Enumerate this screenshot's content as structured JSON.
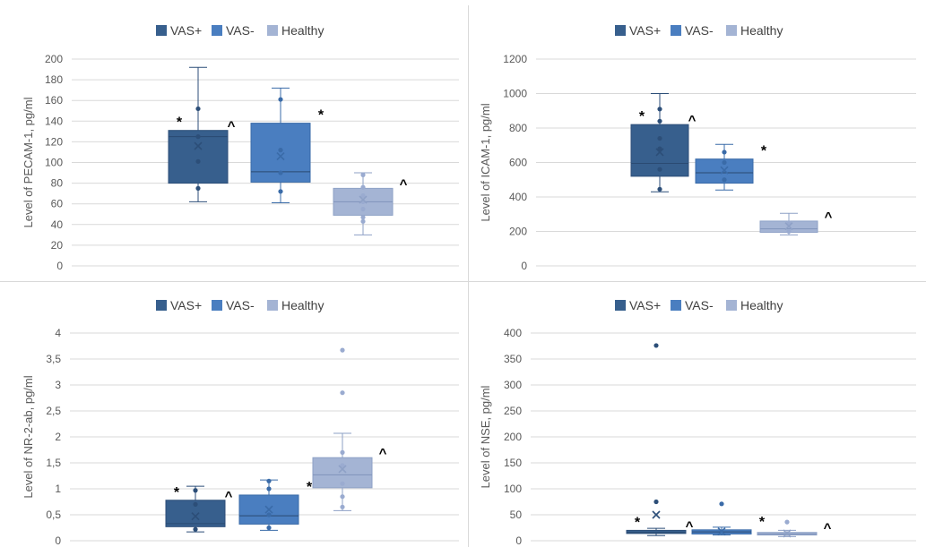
{
  "chart_data": [
    {
      "type": "box",
      "ylabel": "Level of PECAM-1, pg/ml",
      "ylim": [
        0,
        200
      ],
      "yticks": [
        "0",
        "20",
        "40",
        "60",
        "80",
        "100",
        "120",
        "140",
        "160",
        "180",
        "200"
      ],
      "legend": [
        "VAS+",
        "VAS-",
        "Healthy"
      ],
      "legend_position": "top-center",
      "grid": true,
      "series": [
        {
          "name": "VAS+",
          "color": "#375f8d",
          "min": 62,
          "q1": 80,
          "median": 125,
          "q3": 131,
          "max": 192,
          "mean": 116,
          "points": [
            75,
            101,
            125,
            152
          ],
          "annotation": "* ^"
        },
        {
          "name": "VAS-",
          "color": "#4a7ec0",
          "min": 61,
          "q1": 81,
          "median": 91,
          "q3": 138,
          "max": 172,
          "mean": 106,
          "points": [
            72,
            90,
            112,
            161
          ],
          "annotation": "*"
        },
        {
          "name": "Healthy",
          "color": "#a4b4d4",
          "min": 30,
          "q1": 49,
          "median": 62,
          "q3": 75,
          "max": 90,
          "mean": 64,
          "points": [
            43,
            47,
            55,
            62,
            68,
            76,
            88
          ],
          "annotation": "^"
        }
      ]
    },
    {
      "type": "box",
      "ylabel": "Level of ICAM-1, pg/ml",
      "ylim": [
        0,
        1200
      ],
      "yticks": [
        "0",
        "200",
        "400",
        "600",
        "800",
        "1000",
        "1200"
      ],
      "legend": [
        "VAS+",
        "VAS-",
        "Healthy"
      ],
      "legend_position": "top-center",
      "grid": true,
      "series": [
        {
          "name": "VAS+",
          "color": "#375f8d",
          "min": 430,
          "q1": 520,
          "median": 595,
          "q3": 820,
          "max": 1000,
          "mean": 660,
          "points": [
            445,
            560,
            680,
            740,
            840,
            910
          ],
          "annotation": "* ^"
        },
        {
          "name": "VAS-",
          "color": "#4a7ec0",
          "min": 440,
          "q1": 480,
          "median": 540,
          "q3": 620,
          "max": 705,
          "mean": 555,
          "points": [
            500,
            600,
            660
          ],
          "annotation": "*"
        },
        {
          "name": "Healthy",
          "color": "#a4b4d4",
          "min": 180,
          "q1": 195,
          "median": 215,
          "q3": 260,
          "max": 305,
          "mean": 230,
          "points": [
            200,
            250
          ],
          "annotation": "^"
        }
      ]
    },
    {
      "type": "box",
      "ylabel": "Level of NR-2-ab, pg/ml",
      "ylim": [
        0,
        4
      ],
      "yticks": [
        "0",
        "0,5",
        "1",
        "1,5",
        "2",
        "2,5",
        "3",
        "3,5",
        "4"
      ],
      "legend": [
        "VAS+",
        "VAS-",
        "Healthy"
      ],
      "legend_position": "top-center",
      "grid": true,
      "series": [
        {
          "name": "VAS+",
          "color": "#375f8d",
          "min": 0.17,
          "q1": 0.27,
          "median": 0.33,
          "q3": 0.78,
          "max": 1.05,
          "mean": 0.47,
          "points": [
            0.22,
            0.7,
            0.97
          ],
          "annotation": "* ^"
        },
        {
          "name": "VAS-",
          "color": "#4a7ec0",
          "min": 0.2,
          "q1": 0.32,
          "median": 0.48,
          "q3": 0.88,
          "max": 1.17,
          "mean": 0.6,
          "points": [
            0.25,
            0.5,
            1.0,
            1.15
          ],
          "annotation": "*"
        },
        {
          "name": "Healthy",
          "color": "#a4b4d4",
          "min": 0.58,
          "q1": 1.02,
          "median": 1.27,
          "q3": 1.6,
          "max": 2.07,
          "mean": 1.38,
          "points": [
            0.65,
            0.85,
            1.1,
            1.45,
            1.7,
            2.85,
            3.67
          ],
          "annotation": "^"
        }
      ]
    },
    {
      "type": "box",
      "ylabel": "Level of NSE, pg/ml",
      "ylim": [
        0,
        400
      ],
      "yticks": [
        "0",
        "50",
        "100",
        "150",
        "200",
        "250",
        "300",
        "350",
        "400"
      ],
      "legend": [
        "VAS+",
        "VAS-",
        "Healthy"
      ],
      "legend_position": "top-center",
      "grid": true,
      "series": [
        {
          "name": "VAS+",
          "color": "#375f8d",
          "min": 10,
          "q1": 14,
          "median": 16,
          "q3": 20,
          "max": 24,
          "mean": 50,
          "points": [
            75,
            376
          ],
          "annotation": "* ^"
        },
        {
          "name": "VAS-",
          "color": "#4a7ec0",
          "min": 11,
          "q1": 13,
          "median": 17,
          "q3": 21,
          "max": 26,
          "mean": 18,
          "points": [
            71
          ],
          "annotation": "*"
        },
        {
          "name": "Healthy",
          "color": "#a4b4d4",
          "min": 8,
          "q1": 11,
          "median": 13,
          "q3": 16,
          "max": 20,
          "mean": 14,
          "points": [
            36
          ],
          "annotation": "^"
        }
      ]
    }
  ]
}
